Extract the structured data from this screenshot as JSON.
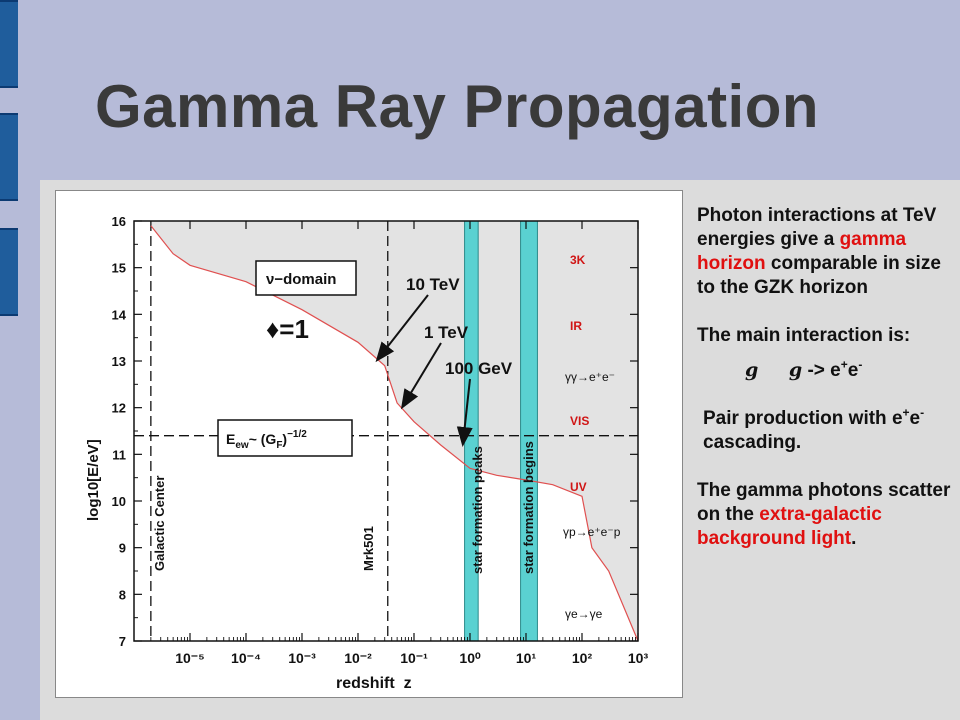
{
  "slide": {
    "title": "Gamma Ray Propagation"
  },
  "notes": {
    "p1_a": "Photon interactions at TeV energies give a",
    "p1_red": "gamma horizon",
    "p1_b": "comparable in size to the GZK horizon",
    "p2": "The main interaction is:",
    "eq_g1": "g",
    "eq_g2": "g",
    "eq_arrow": "-> e",
    "eq_plus": "+",
    "eq_e": "e",
    "eq_minus": "-",
    "p3_a": "Pair production with e",
    "p3_plus": "+",
    "p3_e": "e",
    "p3_minus": "-",
    "p3_b": " cascading.",
    "p4_a": "The gamma photons scatter on the",
    "p4_red": "extra-galactic background light",
    "p4_end": "."
  },
  "figure": {
    "annotations": {
      "tev10": "10 TeV",
      "tev1": "1 TeV",
      "gev100": "100 GeV",
      "tau": "♦=1",
      "nu_domain": "ν−domain",
      "ew_box": "E",
      "ew_sub": "ew",
      "ew_rest": "~ (G",
      "ew_F": "F",
      "ew_close": ")",
      "ew_exp": "−1/2",
      "galactic_center": "Galactic Center",
      "mrk501": "Mrk501",
      "star_peaks": "star formation peaks",
      "star_begins": "star formation begins",
      "band_3k": "3K",
      "band_ir": "IR",
      "band_vis": "VIS",
      "band_uv": "UV",
      "proc_gg": "γγ→e⁺e⁻",
      "proc_gp": "γp→e⁺e⁻p",
      "proc_ge": "γe→γe"
    },
    "colors": {
      "shade": "#e3e3e3",
      "cyan": "#5ad1d1",
      "red_curve": "#e05050",
      "label_red": "#d01515"
    }
  },
  "chart_data": {
    "type": "line",
    "xlabel": "redshift  z",
    "ylabel": "log10[E/eV]",
    "xscale": "log",
    "xlim": [
      1e-06,
      1000.0
    ],
    "ylim": [
      7,
      16
    ],
    "xticks": [
      "10⁻⁵",
      "10⁻⁴",
      "10⁻³",
      "10⁻²",
      "10⁻¹",
      "10⁰",
      "10¹",
      "10²",
      "10³"
    ],
    "yticks": [
      "7",
      "8",
      "9",
      "10",
      "11",
      "12",
      "13",
      "14",
      "15",
      "16"
    ],
    "series": [
      {
        "x": [
          2e-06,
          5e-06,
          1e-05,
          0.0001,
          0.001,
          0.01,
          0.03,
          0.05,
          0.1,
          0.3,
          1,
          3,
          10,
          30,
          100,
          150,
          300,
          1000
        ],
        "y": [
          15.9,
          15.3,
          15.05,
          14.7,
          14.1,
          13.4,
          12.9,
          12.1,
          11.7,
          11.2,
          10.7,
          10.55,
          10.45,
          10.35,
          10.1,
          9.0,
          8.5,
          7.0
        ]
      }
    ],
    "vertical_lines": [
      {
        "x": 2e-06,
        "label": "Galactic Center"
      },
      {
        "x": 0.034,
        "label": "Mrk501"
      }
    ],
    "horizontal_lines": [
      {
        "y": 11.4,
        "label": "E_ew ~ (G_F)^-1/2"
      }
    ],
    "bands": [
      {
        "x": [
          0.8,
          1.4
        ],
        "label": "star formation peaks"
      },
      {
        "x": [
          8,
          16
        ],
        "label": "star formation begins"
      }
    ],
    "arrows": [
      {
        "label": "10 TeV",
        "to": [
          0.03,
          13.0
        ]
      },
      {
        "label": "1 TeV",
        "to": [
          0.07,
          12.1
        ]
      },
      {
        "label": "100 GeV",
        "to": [
          0.5,
          11.2
        ]
      }
    ]
  }
}
